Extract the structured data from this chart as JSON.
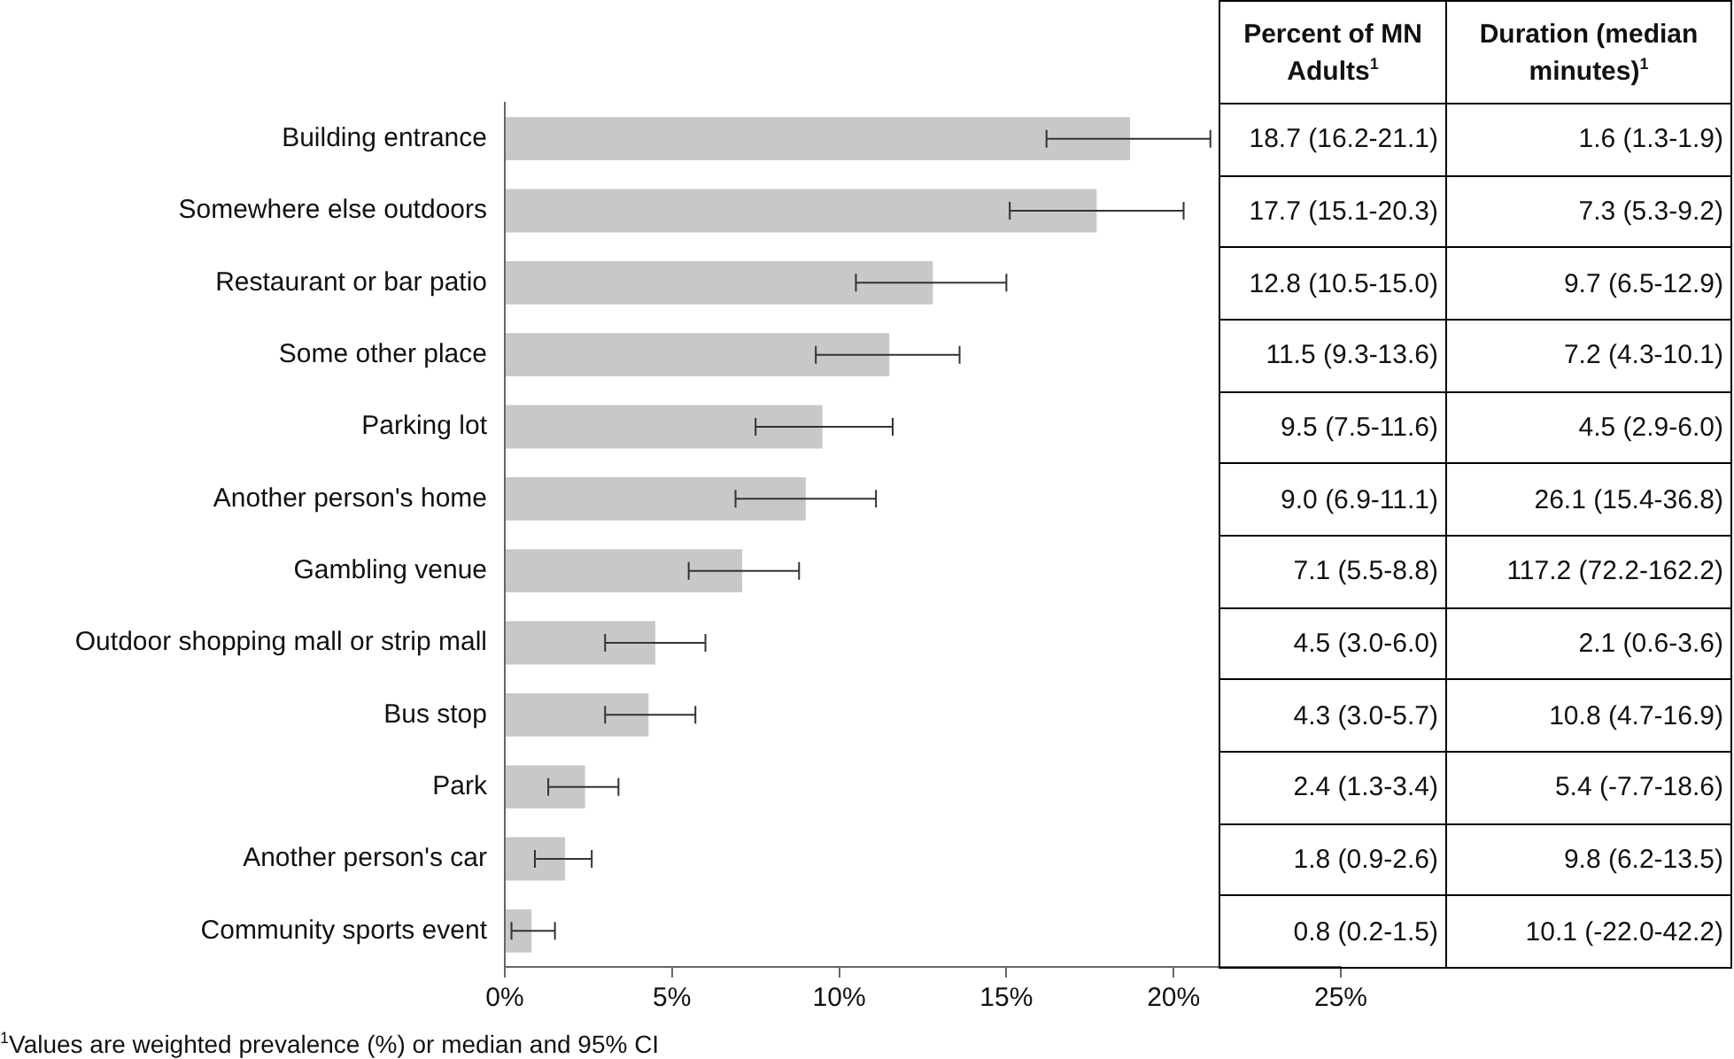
{
  "chart_data": {
    "type": "bar",
    "orientation": "horizontal",
    "categories": [
      "Building entrance",
      "Somewhere else outdoors",
      "Restaurant or bar patio",
      "Some other place",
      "Parking lot",
      "Another person's home",
      "Gambling venue",
      "Outdoor shopping mall or strip mall",
      "Bus stop",
      "Park",
      "Another person's car",
      "Community sports event"
    ],
    "series": [
      {
        "name": "Percent of MN Adults$^{1}$",
        "color": "#c8c8c8",
        "values": [
          18.7,
          17.7,
          12.8,
          11.5,
          9.5,
          9.0,
          7.1,
          4.5,
          4.3,
          2.4,
          1.8,
          0.8
        ],
        "errors": [
          [
            16.2,
            21.1
          ],
          [
            15.1,
            20.3
          ],
          [
            10.5,
            15.0
          ],
          [
            9.3,
            13.6
          ],
          [
            7.5,
            11.6
          ],
          [
            6.9,
            11.1
          ],
          [
            5.5,
            8.8
          ],
          [
            3.0,
            6.0
          ],
          [
            3.0,
            5.7
          ],
          [
            1.3,
            3.4
          ],
          [
            0.9,
            2.6
          ],
          [
            0.2,
            1.5
          ]
        ],
        "value_labels": [
          "18.7 (16.2-21.1)",
          "17.7 (15.1-20.3)",
          "12.8 (10.5-15.0)",
          "11.5 (9.3-13.6)",
          "9.5 (7.5-11.6)",
          "9.0 (6.9-11.1)",
          "7.1 (5.5-8.8)",
          "4.5 (3.0-6.0)",
          "4.3 (3.0-5.7)",
          "2.4 (1.3-3.4)",
          "1.8 (0.9-2.6)",
          "0.8 (0.2-1.5)"
        ]
      }
    ],
    "xlim": [
      0,
      25
    ],
    "xticks": [
      {
        "value": 0,
        "label": "0%"
      },
      {
        "value": 5,
        "label": "5%"
      },
      {
        "value": 10,
        "label": "10%"
      },
      {
        "value": 15,
        "label": "15%"
      },
      {
        "value": 20,
        "label": "20%"
      },
      {
        "value": 25,
        "label": "25%"
      }
    ],
    "grid": false,
    "legend": false,
    "annotations": [
      "Duration (median minutes)$^{1}$",
      "1.6 (1.3-1.9)",
      "7.3 (5.3-9.2)",
      "9.7 (6.5-12.9)",
      "7.2 (4.3-10.1)",
      "4.5 (2.9-6.0)",
      "26.1 (15.4-36.8)",
      "117.2 (72.2-162.2)",
      "2.1 (0.6-3.6)",
      "10.8 (4.7-16.9)",
      "5.4 (-7.7-18.6)",
      "9.8 (6.2-13.5)",
      "10.1 (-22.0-42.2)",
      "$^{1}$Values are weighted prevalence (%) or median and 95% CI"
    ]
  }
}
